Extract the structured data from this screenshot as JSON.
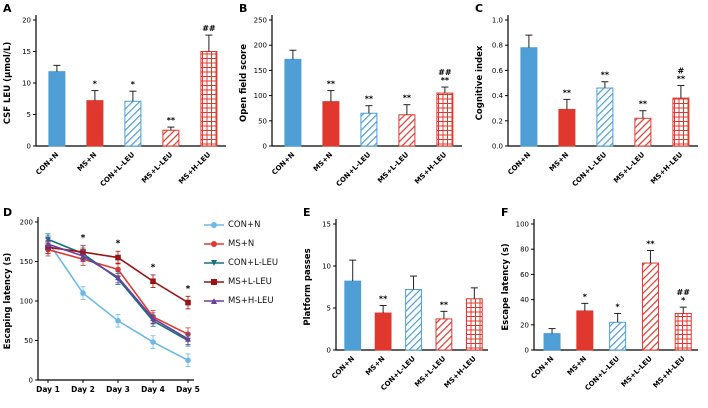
{
  "colors": {
    "blue": "#4D9FD6",
    "red": "#E0382E",
    "teal": "#16707E",
    "dark_red": "#9C1313",
    "purple": "#6A3FA0",
    "error": "#222222",
    "axis": "#000000"
  },
  "chart_data": [
    {
      "panel": "A",
      "type": "bar",
      "ylabel": "CSF LEU (μmol/L)",
      "ylim": [
        0,
        20
      ],
      "yticks": [
        "0",
        "5",
        "10",
        "15",
        "20"
      ],
      "categories": [
        "CON+N",
        "MS+N",
        "CON+L-LEU",
        "MS+L-LEU",
        "MS+H-LEU"
      ],
      "styles": [
        "solid-blue",
        "solid-red",
        "hatch-blue",
        "hatch-red",
        "cross-red"
      ],
      "values": [
        11.8,
        7.2,
        7.1,
        2.5,
        15.0
      ],
      "errors": [
        1.0,
        1.6,
        1.6,
        0.5,
        2.6
      ],
      "sig": [
        [],
        [
          "*"
        ],
        [
          "*"
        ],
        [
          "**"
        ],
        [
          "##"
        ]
      ]
    },
    {
      "panel": "B",
      "type": "bar",
      "ylabel": "Open field score",
      "ylim": [
        0,
        250
      ],
      "yticks": [
        "0",
        "50",
        "100",
        "150",
        "200",
        "250"
      ],
      "categories": [
        "CON+N",
        "MS+N",
        "CON+L-LEU",
        "MS+L-LEU",
        "MS+H-LEU"
      ],
      "styles": [
        "solid-blue",
        "solid-red",
        "hatch-blue",
        "hatch-red",
        "cross-red"
      ],
      "values": [
        172,
        88,
        65,
        62,
        105
      ],
      "errors": [
        18,
        22,
        15,
        20,
        12
      ],
      "sig": [
        [],
        [
          "**"
        ],
        [
          "**"
        ],
        [
          "**"
        ],
        [
          "##",
          "**"
        ]
      ]
    },
    {
      "panel": "C",
      "type": "bar",
      "ylabel": "Cognitive index",
      "ylim": [
        0,
        1.0
      ],
      "yticks": [
        "0.0",
        "0.2",
        "0.4",
        "0.6",
        "0.8",
        "1.0"
      ],
      "categories": [
        "CON+N",
        "MS+N",
        "CON+L-LEU",
        "MS+L-LEU",
        "MS+H-LEU"
      ],
      "styles": [
        "solid-blue",
        "solid-red",
        "hatch-blue",
        "hatch-red",
        "cross-red"
      ],
      "values": [
        0.78,
        0.29,
        0.46,
        0.22,
        0.38
      ],
      "errors": [
        0.1,
        0.08,
        0.05,
        0.06,
        0.1
      ],
      "sig": [
        [],
        [
          "**"
        ],
        [
          "**"
        ],
        [
          "**"
        ],
        [
          "#",
          "**"
        ]
      ]
    },
    {
      "panel": "D",
      "type": "line",
      "ylabel": "Escaping latency (s)",
      "ylim": [
        0,
        200
      ],
      "yticks": [
        "0",
        "50",
        "100",
        "150",
        "200"
      ],
      "x": [
        "Day 1",
        "Day 2",
        "Day 3",
        "Day 4",
        "Day 5"
      ],
      "series": [
        {
          "name": "CON+N",
          "color": "#6CB9E8",
          "marker": "circle",
          "values": [
            175,
            110,
            75,
            48,
            25
          ],
          "err": 8
        },
        {
          "name": "MS+N",
          "color": "#E0382E",
          "marker": "circle",
          "values": [
            165,
            153,
            140,
            80,
            58
          ],
          "err": 8
        },
        {
          "name": "CON+L-LEU",
          "color": "#16707E",
          "marker": "triangle-down",
          "values": [
            178,
            160,
            128,
            75,
            50
          ],
          "err": 7
        },
        {
          "name": "MS+L-LEU",
          "color": "#9C1313",
          "marker": "square",
          "values": [
            168,
            162,
            155,
            125,
            98
          ],
          "err": 8
        },
        {
          "name": "MS+H-LEU",
          "color": "#6A3FA0",
          "marker": "triangle-up",
          "values": [
            172,
            157,
            130,
            78,
            52
          ],
          "err": 7
        }
      ],
      "sig_x": [
        "",
        "*",
        "*",
        "*",
        "*"
      ]
    },
    {
      "panel": "E",
      "type": "bar",
      "ylabel": "Platform passes",
      "ylim": [
        0,
        15
      ],
      "yticks": [
        "0",
        "5",
        "10",
        "15"
      ],
      "categories": [
        "CON+N",
        "MS+N",
        "CON+L-LEU",
        "MS+L-LEU",
        "MS+H-LEU"
      ],
      "styles": [
        "solid-blue",
        "solid-red",
        "hatch-blue",
        "hatch-red",
        "cross-red"
      ],
      "values": [
        8.2,
        4.4,
        7.2,
        3.7,
        6.1
      ],
      "errors": [
        2.5,
        0.9,
        1.6,
        0.9,
        1.3
      ],
      "sig": [
        [],
        [
          "**"
        ],
        [],
        [
          "**"
        ],
        []
      ]
    },
    {
      "panel": "F",
      "type": "bar",
      "ylabel": "Escape latency (s)",
      "ylim": [
        0,
        100
      ],
      "yticks": [
        "0",
        "20",
        "40",
        "60",
        "80",
        "100"
      ],
      "categories": [
        "CON+N",
        "MS+N",
        "CON+L-LEU",
        "MS+L-LEU",
        "MS+H-LEU"
      ],
      "styles": [
        "solid-blue",
        "solid-red",
        "hatch-blue",
        "hatch-red",
        "cross-red"
      ],
      "values": [
        13,
        31,
        22,
        69,
        29
      ],
      "errors": [
        4,
        6,
        7,
        10,
        5
      ],
      "sig": [
        [],
        [
          "*"
        ],
        [
          "*"
        ],
        [
          "**"
        ],
        [
          "##",
          "*"
        ]
      ]
    }
  ]
}
